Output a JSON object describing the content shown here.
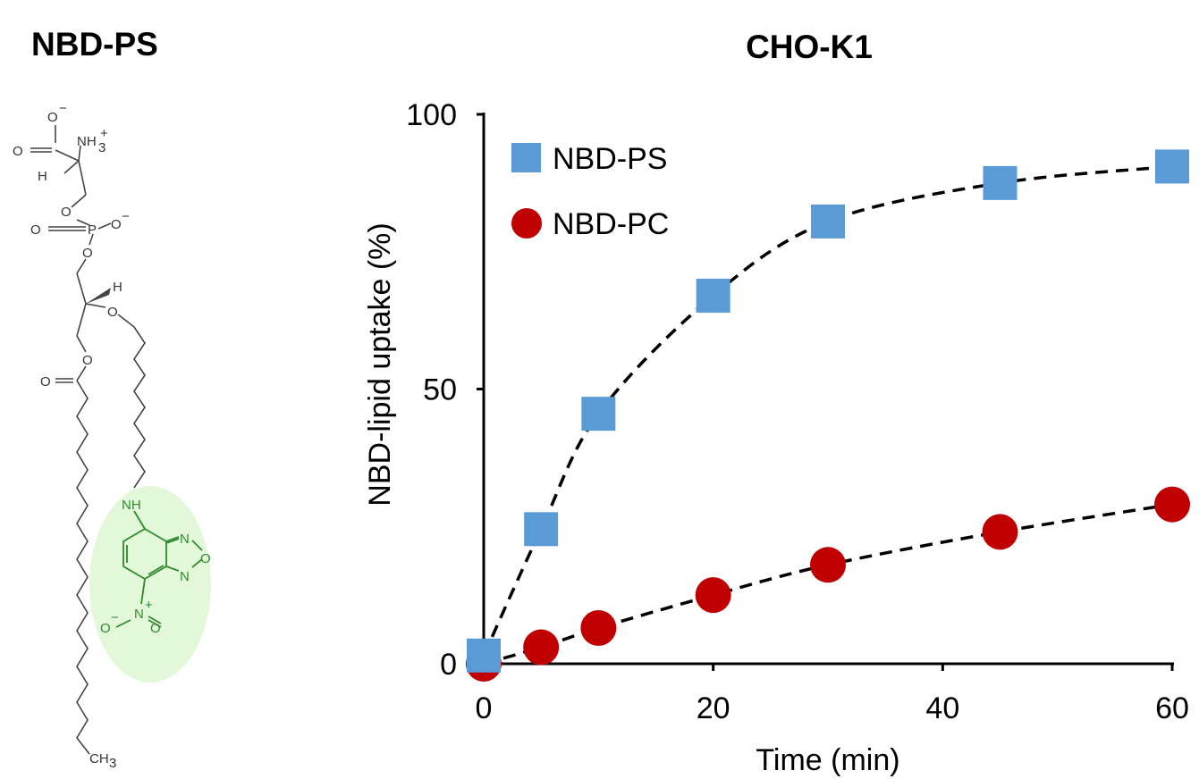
{
  "left_panel": {
    "title": "NBD-PS",
    "atoms": {
      "carboxylate_o": "O",
      "carboxylate_o_charge": "−",
      "carbonyl_o": "O",
      "amine": "NH",
      "amine_sub": "3",
      "amine_charge": "+",
      "h_alpha": "H",
      "phosphate_o_ester1": "O",
      "phosphate_p": "P",
      "phosphate_o_dbl": "O",
      "phosphate_o_neg": "O",
      "phosphate_o_neg_charge": "−",
      "phosphate_o_ester2": "O",
      "glycerol_h": "H",
      "ether_o": "O",
      "ester_o": "O",
      "ester_carbonyl_o": "O",
      "methyl": "CH",
      "methyl_sub": "3",
      "nbd_nh": "NH",
      "nbd_n1": "N",
      "nbd_n2": "N",
      "nbd_o_ring": "O",
      "nitro_n": "N",
      "nitro_n_charge": "+",
      "nitro_o1": "O",
      "nitro_o1_charge": "−",
      "nitro_o2": "O"
    },
    "highlight_color": "#e3f7d9",
    "nbd_color": "#2e8b2e"
  },
  "chart_data": {
    "type": "scatter",
    "title": "CHO-K1",
    "xlabel": "Time (min)",
    "ylabel": "NBD-lipid uptake (%)",
    "xlim": [
      0,
      60
    ],
    "ylim": [
      0,
      100
    ],
    "xticks": [
      0,
      20,
      40,
      60
    ],
    "yticks": [
      0,
      50,
      100
    ],
    "grid": false,
    "legend_position": "top-left",
    "series": [
      {
        "name": "NBD-PS",
        "marker": "square",
        "color": "#5b9bd5",
        "line": "dashed",
        "x": [
          0,
          5,
          10,
          20,
          30,
          45,
          60
        ],
        "y": [
          1.5,
          24.5,
          45.5,
          67,
          80.5,
          87.5,
          90.5
        ]
      },
      {
        "name": "NBD-PC",
        "marker": "circle",
        "color": "#c00000",
        "line": "dashed",
        "x": [
          0,
          5,
          10,
          20,
          30,
          45,
          60
        ],
        "y": [
          0,
          3,
          6.5,
          12.5,
          18,
          24,
          29
        ]
      }
    ]
  }
}
